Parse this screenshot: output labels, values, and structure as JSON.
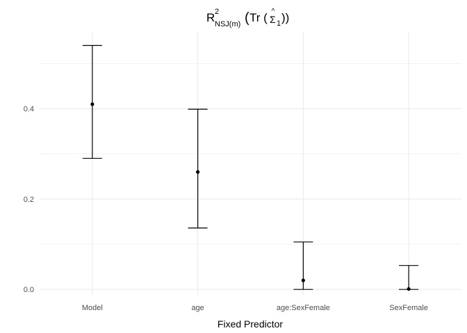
{
  "chart_data": {
    "type": "scatter",
    "title": {
      "base": "R",
      "superscript": "2",
      "subscript": "NSJ(m)",
      "paren_open": "(",
      "func": "Tr (",
      "hat": "^",
      "symbol": "Σ",
      "symbol_subscript": "1",
      "paren_close": "))"
    },
    "xlabel": "Fixed Predictor",
    "ylabel": "",
    "categories": [
      "Model",
      "age",
      "age:SexFemale",
      "SexFemale"
    ],
    "estimates": [
      0.41,
      0.26,
      0.02,
      0.001
    ],
    "lower": [
      0.29,
      0.136,
      0.0,
      0.0
    ],
    "upper": [
      0.54,
      0.399,
      0.105,
      0.053
    ],
    "ylim": [
      -0.012,
      0.57
    ],
    "yticks": [
      0.0,
      0.2,
      0.4
    ],
    "ytick_labels": [
      "0.0",
      "0.2",
      "0.4"
    ],
    "grid": true,
    "colors": {
      "grid": "#ebebeb",
      "mark": "#000000",
      "tick_text": "#4d4d4d"
    }
  }
}
